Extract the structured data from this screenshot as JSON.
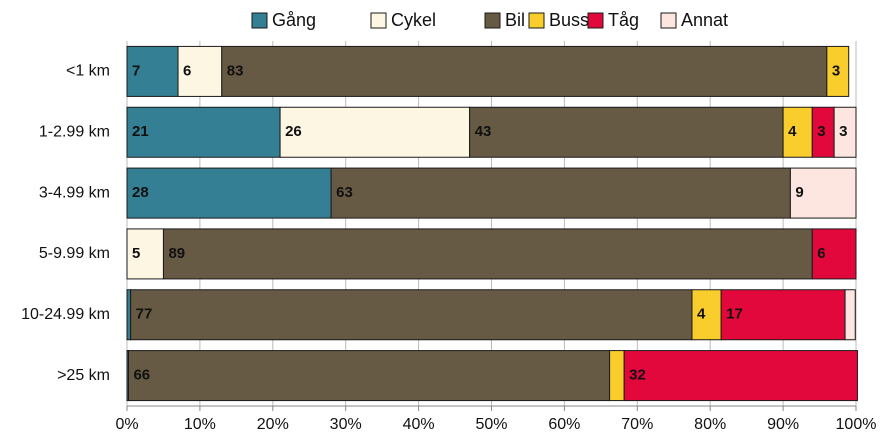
{
  "chart_data": {
    "type": "stacked_barh",
    "categories": [
      "<1 km",
      "1-2.99 km",
      "3-4.99 km",
      "5-9.99 km",
      "10-24.99 km",
      ">25 km"
    ],
    "series": [
      {
        "name": "Gång",
        "color": "#347f93",
        "label_color": "#ffffff",
        "values": [
          7,
          21,
          28,
          0,
          0.5,
          0.2
        ]
      },
      {
        "name": "Cykel",
        "color": "#fdf6e3",
        "label_color": "#000000",
        "values": [
          6,
          26,
          0,
          5,
          0,
          0
        ]
      },
      {
        "name": "Bil",
        "color": "#675a45",
        "label_color": "#ffffff",
        "values": [
          83,
          43,
          63,
          89,
          77,
          66
        ]
      },
      {
        "name": "Buss",
        "color": "#f8cd2c",
        "label_color": "#000000",
        "values": [
          3,
          4,
          0,
          0,
          4,
          2
        ]
      },
      {
        "name": "Tåg",
        "color": "#e3083c",
        "label_color": "#ffffff",
        "values": [
          0,
          3,
          0,
          6,
          17,
          32
        ]
      },
      {
        "name": "Annat",
        "color": "#fde6e0",
        "label_color": "#000000",
        "values": [
          0,
          3,
          9,
          0,
          1.4,
          0
        ]
      }
    ],
    "xlim": [
      0,
      100
    ],
    "xticks": [
      {
        "value": 0,
        "label": "0%"
      },
      {
        "value": 10,
        "label": "10%"
      },
      {
        "value": 20,
        "label": "20%"
      },
      {
        "value": 30,
        "label": "30%"
      },
      {
        "value": 40,
        "label": "40%"
      },
      {
        "value": 50,
        "label": "50%"
      },
      {
        "value": 60,
        "label": "60%"
      },
      {
        "value": 70,
        "label": "70%"
      },
      {
        "value": 80,
        "label": "80%"
      },
      {
        "value": 90,
        "label": "90%"
      },
      {
        "value": 100,
        "label": "100%"
      }
    ],
    "grid": true,
    "legend": "top"
  }
}
